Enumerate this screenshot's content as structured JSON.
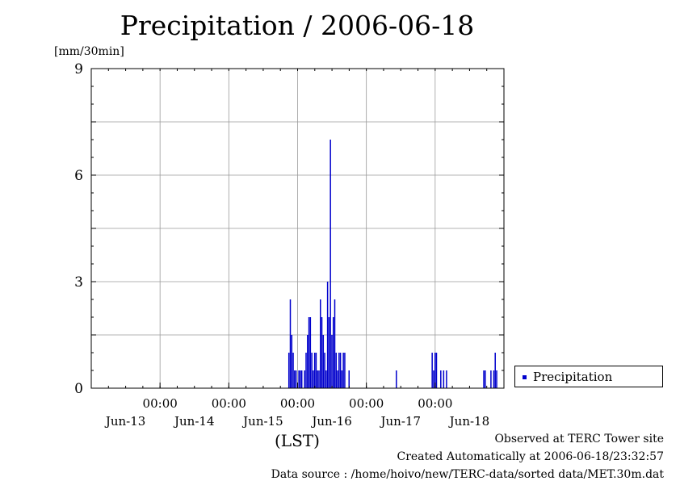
{
  "title": "Precipitation / 2006-06-18",
  "y_unit": "[mm/30min]",
  "x_axis_caption": "(LST)",
  "footer": {
    "observed": "Observed at TERC Tower site",
    "created": "Created Automatically at 2006-06-18/23:32:57",
    "source": "Data source : /home/hoivo/new/TERC-data/sorted  data/MET.30m.dat"
  },
  "legend": {
    "label": "Precipitation",
    "color": "#0000cc"
  },
  "chart_data": {
    "type": "bar",
    "title": "Precipitation / 2006-06-18",
    "ylabel": "[mm/30min]",
    "xlabel": "(LST)",
    "ylim": [
      0,
      9
    ],
    "yticks": [
      0,
      3,
      6,
      9
    ],
    "xlim": [
      "2006-06-12 12:00",
      "2006-06-18 12:00"
    ],
    "time_tick_labels": [
      "00:00",
      "00:00",
      "00:00",
      "00:00",
      "00:00"
    ],
    "time_ticks": [
      "2006-06-13 12:00",
      "2006-06-14 12:00",
      "2006-06-15 12:00",
      "2006-06-16 12:00",
      "2006-06-17 12:00"
    ],
    "day_labels": [
      "Jun-13",
      "Jun-14",
      "Jun-15",
      "Jun-16",
      "Jun-17",
      "Jun-18"
    ],
    "day_label_positions": [
      "2006-06-13",
      "2006-06-14",
      "2006-06-15",
      "2006-06-16",
      "2006-06-17",
      "2006-06-18"
    ],
    "grid": true,
    "legend_position": "right",
    "bar_color": "#0000cc",
    "series": [
      {
        "name": "Precipitation",
        "points": [
          [
            "2006-06-15 09:00",
            1.0
          ],
          [
            "2006-06-15 09:30",
            2.5
          ],
          [
            "2006-06-15 10:00",
            1.5
          ],
          [
            "2006-06-15 10:30",
            1.0
          ],
          [
            "2006-06-15 11:00",
            0.5
          ],
          [
            "2006-06-15 11:30",
            0.5
          ],
          [
            "2006-06-15 12:30",
            0.5
          ],
          [
            "2006-06-15 13:00",
            0.5
          ],
          [
            "2006-06-15 13:30",
            0.5
          ],
          [
            "2006-06-15 14:30",
            0.5
          ],
          [
            "2006-06-15 15:00",
            1.0
          ],
          [
            "2006-06-15 15:30",
            1.5
          ],
          [
            "2006-06-15 16:00",
            2.0
          ],
          [
            "2006-06-15 16:30",
            2.0
          ],
          [
            "2006-06-15 17:00",
            1.0
          ],
          [
            "2006-06-15 17:30",
            0.5
          ],
          [
            "2006-06-15 18:00",
            1.0
          ],
          [
            "2006-06-15 18:30",
            1.0
          ],
          [
            "2006-06-15 19:00",
            0.5
          ],
          [
            "2006-06-15 19:30",
            0.5
          ],
          [
            "2006-06-15 20:00",
            2.5
          ],
          [
            "2006-06-15 20:30",
            2.0
          ],
          [
            "2006-06-15 21:00",
            1.5
          ],
          [
            "2006-06-15 21:30",
            1.0
          ],
          [
            "2006-06-15 22:00",
            0.5
          ],
          [
            "2006-06-15 22:30",
            3.0
          ],
          [
            "2006-06-15 23:00",
            2.0
          ],
          [
            "2006-06-15 23:30",
            7.0
          ],
          [
            "2006-06-16 00:00",
            1.5
          ],
          [
            "2006-06-16 00:30",
            2.0
          ],
          [
            "2006-06-16 01:00",
            2.5
          ],
          [
            "2006-06-16 01:30",
            1.0
          ],
          [
            "2006-06-16 02:00",
            0.5
          ],
          [
            "2006-06-16 02:30",
            1.0
          ],
          [
            "2006-06-16 03:00",
            1.0
          ],
          [
            "2006-06-16 03:30",
            0.5
          ],
          [
            "2006-06-16 04:00",
            1.0
          ],
          [
            "2006-06-16 04:30",
            1.0
          ],
          [
            "2006-06-16 06:00",
            0.5
          ],
          [
            "2006-06-16 22:30",
            0.5
          ],
          [
            "2006-06-17 11:00",
            1.0
          ],
          [
            "2006-06-17 11:30",
            0.5
          ],
          [
            "2006-06-17 12:00",
            1.0
          ],
          [
            "2006-06-17 12:30",
            1.0
          ],
          [
            "2006-06-17 14:00",
            0.5
          ],
          [
            "2006-06-17 15:00",
            0.5
          ],
          [
            "2006-06-17 16:00",
            0.5
          ],
          [
            "2006-06-18 05:00",
            0.5
          ],
          [
            "2006-06-18 05:30",
            0.5
          ],
          [
            "2006-06-18 07:30",
            0.5
          ],
          [
            "2006-06-18 08:30",
            0.5
          ],
          [
            "2006-06-18 09:00",
            1.0
          ],
          [
            "2006-06-18 09:30",
            0.5
          ]
        ]
      }
    ]
  }
}
